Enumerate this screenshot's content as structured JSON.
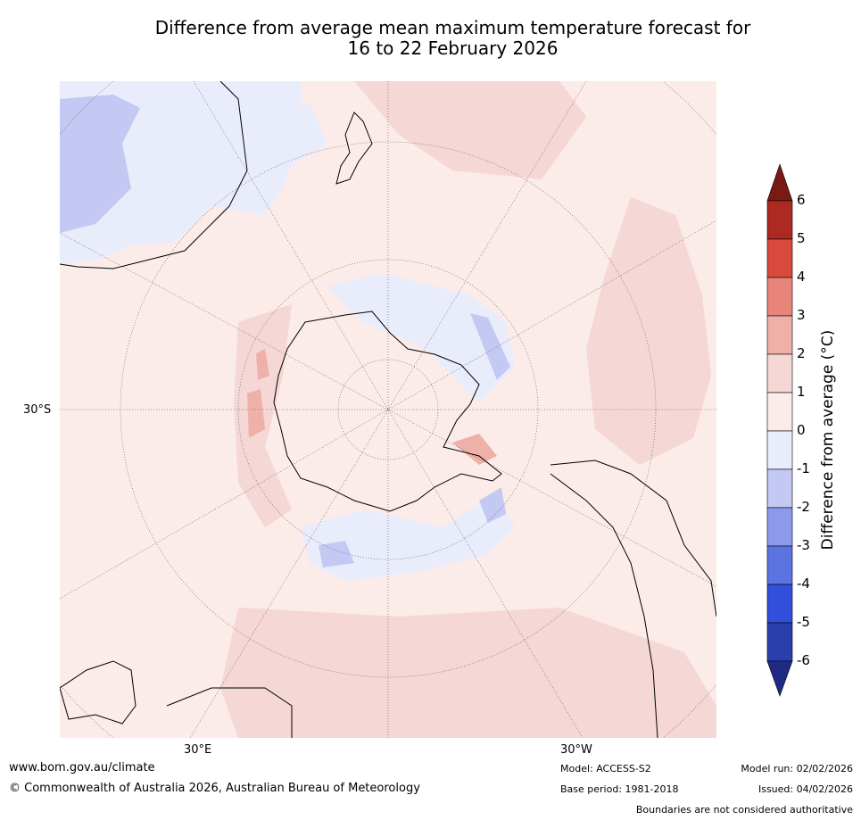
{
  "title": {
    "line1": "Difference from average mean maximum temperature forecast for",
    "line2": "16 to 22 February 2026"
  },
  "map": {
    "lat_label": "30°S",
    "lon_label_east": "30°E",
    "lon_label_west": "30°W",
    "projection_center": "South Pole"
  },
  "colorbar": {
    "label": "Difference from average (°C)",
    "ticks": [
      "6",
      "5",
      "4",
      "3",
      "2",
      "1",
      "0",
      "-1",
      "-2",
      "-3",
      "-4",
      "-5",
      "-6"
    ],
    "colors": {
      "above_6": "#7a1a14",
      "5_6": "#ad2a22",
      "4_5": "#d94a3d",
      "3_4": "#e8857a",
      "2_3": "#efb0a8",
      "1_2": "#f5d7d5",
      "0_1": "#fbebe9",
      "m1_0": "#e9ecfb",
      "m2_m1": "#c3c9f3",
      "m3_m2": "#8c9aed",
      "m4_m3": "#5c73e2",
      "m5_m4": "#324fdc",
      "m6_m5": "#2a3fad",
      "below_m6": "#1f2a85"
    }
  },
  "footer": {
    "url": "www.bom.gov.au/climate",
    "copyright": "© Commonwealth of Australia 2026, Australian Bureau of Meteorology",
    "model": "Model: ACCESS-S2",
    "base_period": "Base period: 1981-2018",
    "model_run": "Model run: 02/02/2026",
    "issued": "Issued: 04/02/2026",
    "disclaimer": "Boundaries are not considered authoritative"
  }
}
